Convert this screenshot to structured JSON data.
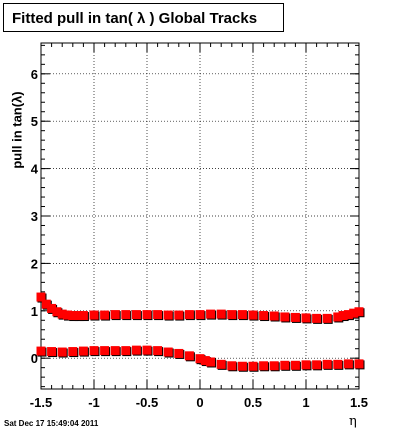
{
  "title": "Fitted pull in tan( λ )  Global Tracks",
  "timestamp": "Sat Dec 17 15:49:04 2011",
  "colors": {
    "marker": "#ff0000",
    "secondary_marker": "#000000",
    "grid": "#000000"
  },
  "chart_data": {
    "type": "scatter",
    "xlabel": "η",
    "ylabel": "pull in tan(λ)",
    "xlim": [
      -1.5,
      1.5
    ],
    "ylim": [
      -0.65,
      6.65
    ],
    "grid": true,
    "x_ticks": [
      "-1.5",
      "-1",
      "-0.5",
      "0",
      "0.5",
      "1",
      "1.5"
    ],
    "y_ticks": [
      "0",
      "1",
      "2",
      "3",
      "4",
      "5",
      "6"
    ],
    "series": [
      {
        "role": "upper",
        "x": [
          -1.5,
          -1.45,
          -1.4,
          -1.35,
          -1.3,
          -1.25,
          -1.2,
          -1.15,
          -1.1,
          -1.0,
          -0.9,
          -0.8,
          -0.7,
          -0.6,
          -0.5,
          -0.4,
          -0.3,
          -0.2,
          -0.1,
          0.0,
          0.1,
          0.2,
          0.3,
          0.4,
          0.5,
          0.6,
          0.7,
          0.8,
          0.9,
          1.0,
          1.1,
          1.2,
          1.3,
          1.35,
          1.4,
          1.45,
          1.5
        ],
        "y": [
          1.29,
          1.14,
          1.05,
          0.98,
          0.93,
          0.91,
          0.9,
          0.9,
          0.9,
          0.91,
          0.91,
          0.92,
          0.92,
          0.92,
          0.92,
          0.92,
          0.91,
          0.91,
          0.92,
          0.92,
          0.93,
          0.93,
          0.92,
          0.92,
          0.91,
          0.9,
          0.89,
          0.87,
          0.86,
          0.85,
          0.84,
          0.84,
          0.87,
          0.9,
          0.92,
          0.95,
          0.98
        ]
      },
      {
        "role": "lower",
        "x": [
          -1.5,
          -1.4,
          -1.3,
          -1.2,
          -1.1,
          -1.0,
          -0.9,
          -0.8,
          -0.7,
          -0.6,
          -0.5,
          -0.4,
          -0.3,
          -0.2,
          -0.1,
          0.0,
          0.05,
          0.1,
          0.2,
          0.3,
          0.4,
          0.5,
          0.6,
          0.7,
          0.8,
          0.9,
          1.0,
          1.1,
          1.2,
          1.3,
          1.4,
          1.5
        ],
        "y": [
          0.15,
          0.14,
          0.13,
          0.14,
          0.15,
          0.16,
          0.16,
          0.16,
          0.16,
          0.17,
          0.17,
          0.16,
          0.13,
          0.1,
          0.05,
          -0.01,
          -0.05,
          -0.08,
          -0.13,
          -0.16,
          -0.17,
          -0.17,
          -0.16,
          -0.16,
          -0.15,
          -0.15,
          -0.14,
          -0.14,
          -0.13,
          -0.13,
          -0.12,
          -0.12
        ]
      }
    ]
  }
}
